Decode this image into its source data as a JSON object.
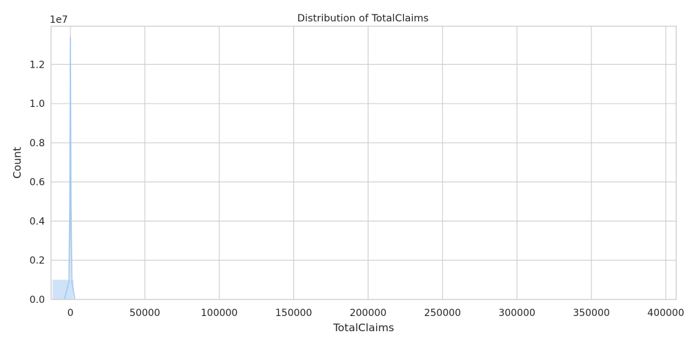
{
  "chart_data": {
    "type": "bar",
    "title": "Distribution of TotalClaims",
    "xlabel": "TotalClaims",
    "ylabel": "Count",
    "y_offset_label": "1e7",
    "xlim": [
      -13000,
      407000
    ],
    "ylim": [
      0,
      13950000
    ],
    "x_ticks": [
      0,
      50000,
      100000,
      150000,
      200000,
      250000,
      300000,
      350000,
      400000
    ],
    "x_tick_labels": [
      "0",
      "50000",
      "100000",
      "150000",
      "200000",
      "250000",
      "300000",
      "350000",
      "400000"
    ],
    "y_ticks": [
      0,
      2000000,
      4000000,
      6000000,
      8000000,
      10000000,
      12000000
    ],
    "y_tick_labels": [
      "0.0",
      "0.2",
      "0.4",
      "0.6",
      "0.8",
      "1.0",
      "1.2"
    ],
    "grid": true,
    "bins": [
      {
        "x0": -12000,
        "x1": 2000,
        "count": 1000000
      }
    ],
    "kde": {
      "x": [
        -4000,
        -1000,
        -400,
        0,
        400,
        1000,
        3000
      ],
      "y": [
        0,
        900000,
        5000000,
        13400000,
        5000000,
        900000,
        0
      ]
    },
    "colors": {
      "bar_fill": "#cfe2f7",
      "bar_edge": "#e6eef9",
      "kde_line": "#a1c9f4"
    }
  }
}
